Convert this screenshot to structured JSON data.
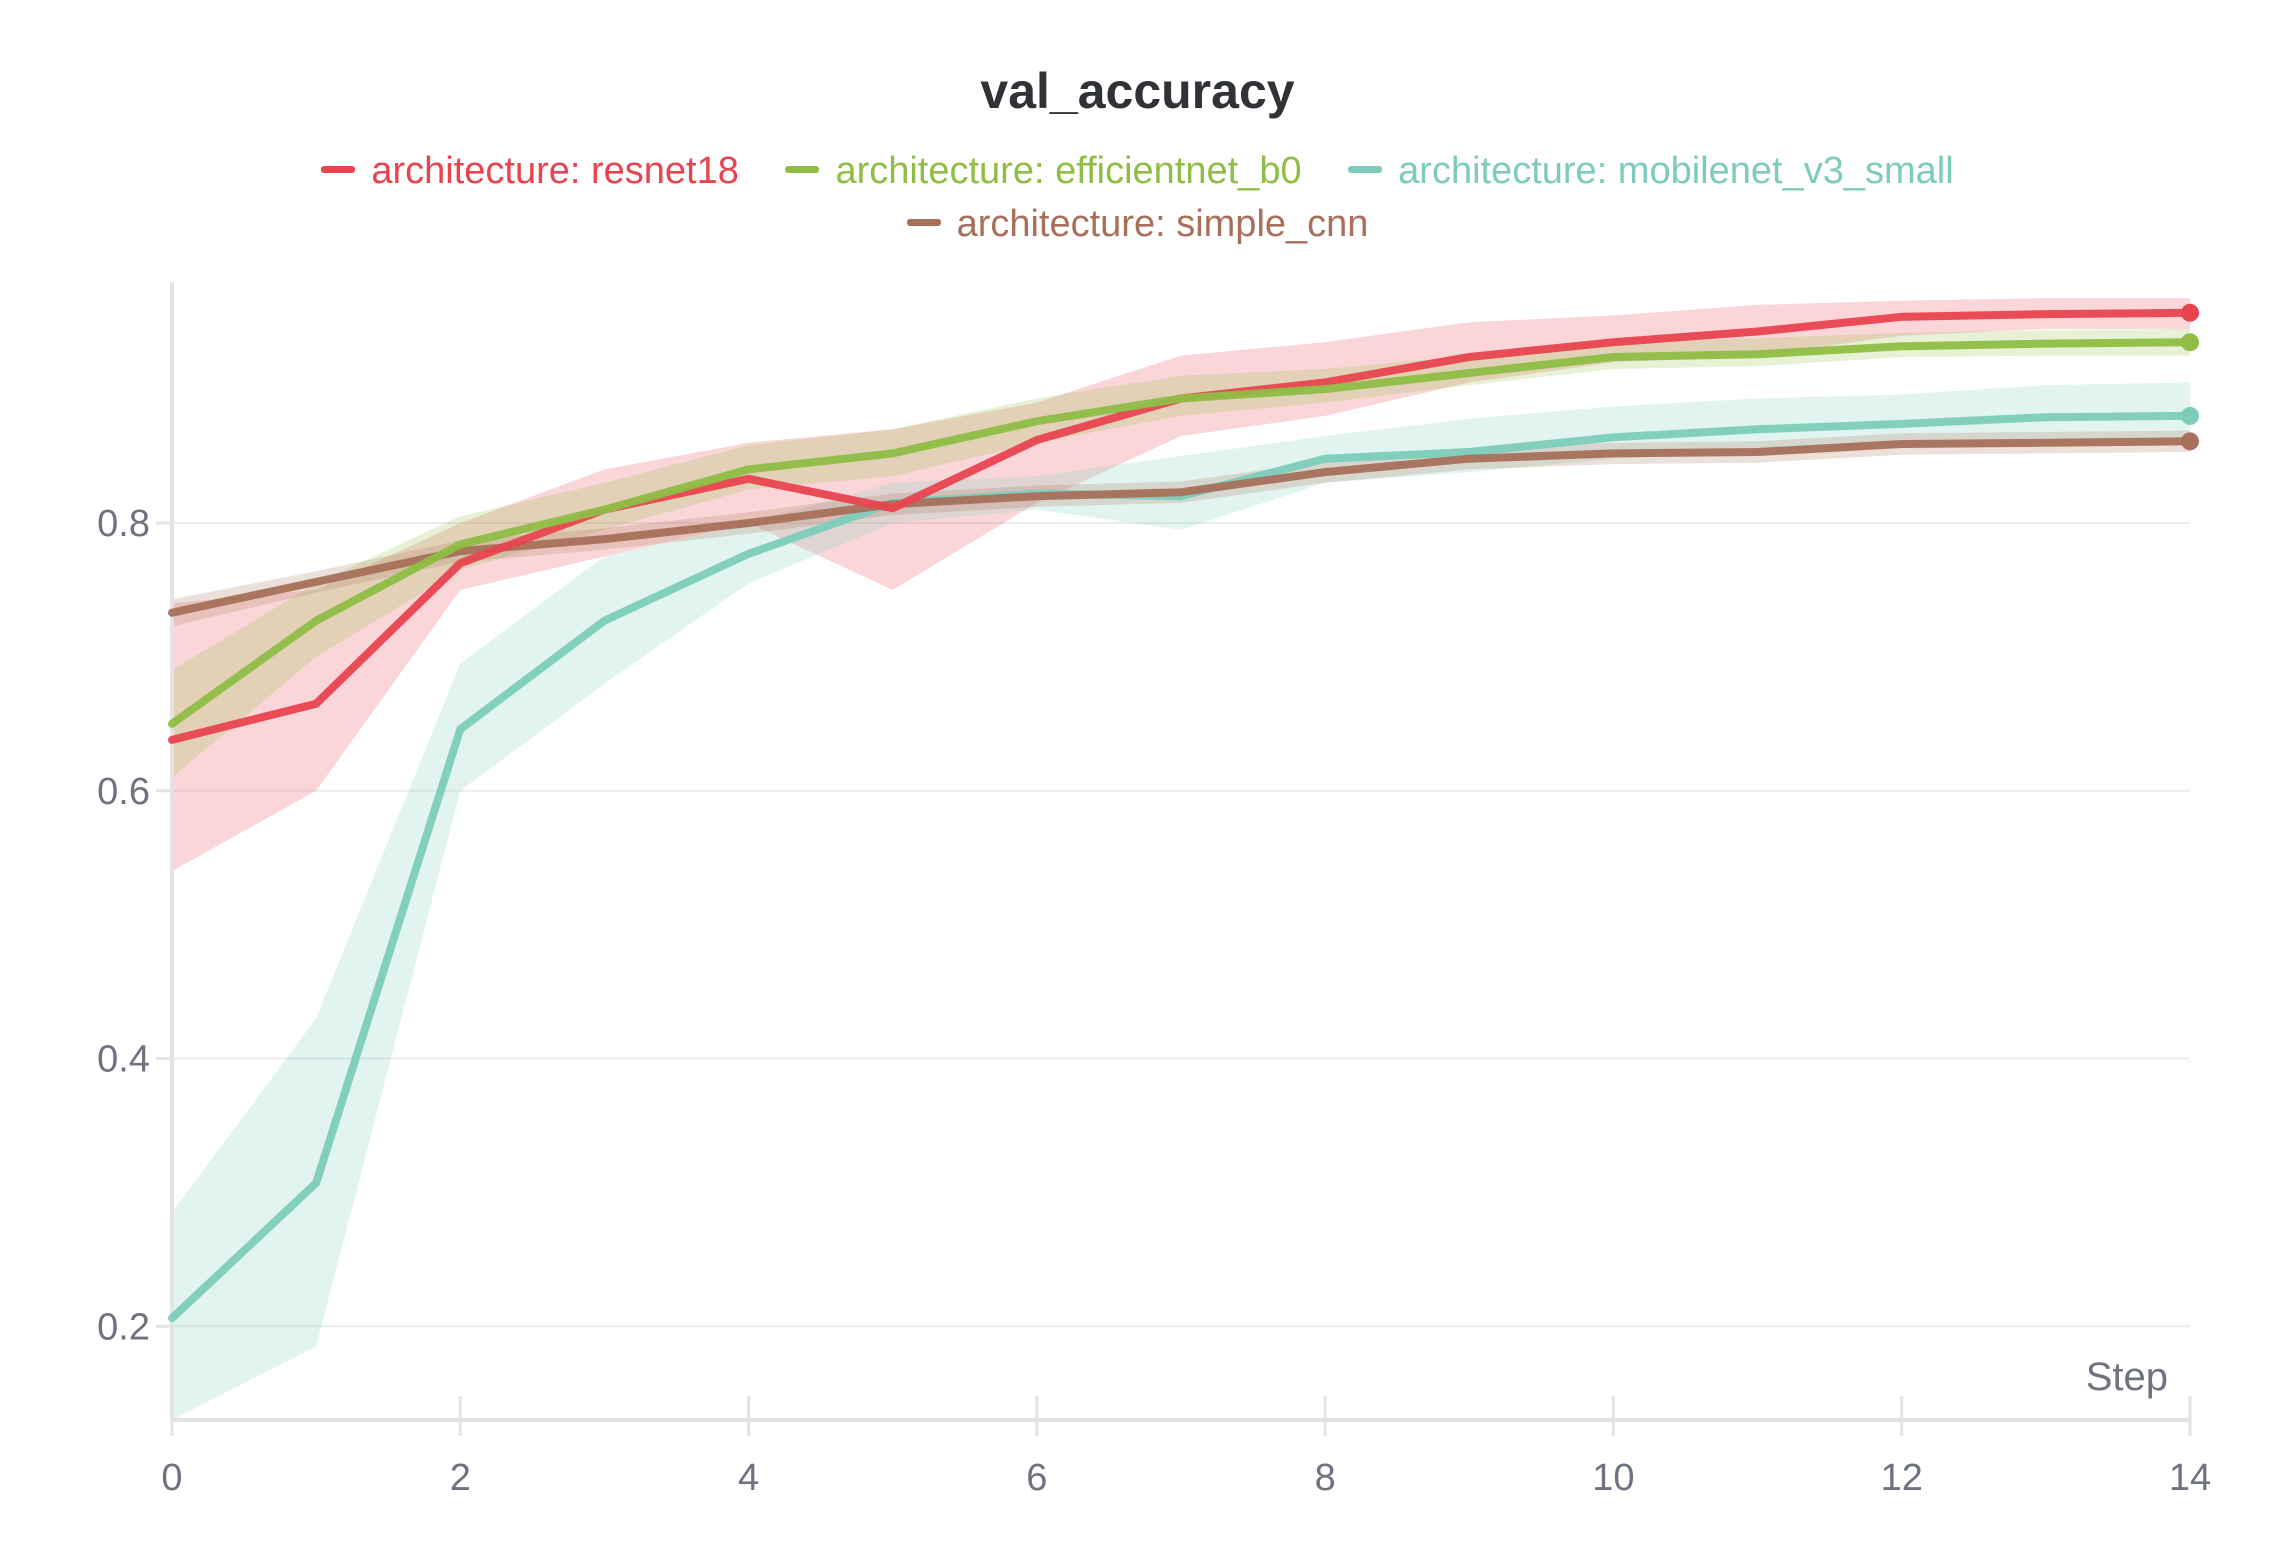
{
  "chart_data": {
    "type": "line",
    "title": "val_accuracy",
    "xlabel": "Step",
    "ylabel": "",
    "xlim": [
      0,
      14
    ],
    "ylim": [
      0.13,
      0.98
    ],
    "x_ticks": [
      0,
      2,
      4,
      6,
      8,
      10,
      12,
      14
    ],
    "y_ticks": [
      0.2,
      0.4,
      0.6,
      0.8
    ],
    "y_tick_labels": [
      "0.2",
      "0.4",
      "0.6",
      "0.8"
    ],
    "grid": true,
    "legend_position": "top-center",
    "x": [
      0,
      1,
      2,
      3,
      4,
      5,
      6,
      7,
      8,
      9,
      10,
      11,
      12,
      13,
      14
    ],
    "series": [
      {
        "name": "architecture: resnet18",
        "color": "#e8444f",
        "values": [
          0.638,
          0.665,
          0.77,
          0.81,
          0.833,
          0.811,
          0.862,
          0.893,
          0.905,
          0.924,
          0.935,
          0.943,
          0.954,
          0.956,
          0.957
        ],
        "band_low": [
          0.54,
          0.6,
          0.75,
          0.775,
          0.8,
          0.75,
          0.815,
          0.865,
          0.88,
          0.905,
          0.92,
          0.925,
          0.94,
          0.945,
          0.945
        ],
        "band_high": [
          0.74,
          0.75,
          0.8,
          0.84,
          0.86,
          0.87,
          0.89,
          0.925,
          0.935,
          0.95,
          0.955,
          0.963,
          0.966,
          0.968,
          0.968
        ]
      },
      {
        "name": "architecture: efficientnet_b0",
        "color": "#8fbd45",
        "values": [
          0.65,
          0.727,
          0.784,
          0.81,
          0.84,
          0.852,
          0.876,
          0.893,
          0.9,
          0.912,
          0.924,
          0.926,
          0.932,
          0.934,
          0.935
        ],
        "band_low": [
          0.61,
          0.7,
          0.765,
          0.795,
          0.825,
          0.835,
          0.86,
          0.88,
          0.89,
          0.903,
          0.915,
          0.917,
          0.924,
          0.925,
          0.925
        ],
        "band_high": [
          0.69,
          0.755,
          0.805,
          0.83,
          0.858,
          0.87,
          0.893,
          0.91,
          0.915,
          0.925,
          0.935,
          0.938,
          0.942,
          0.944,
          0.945
        ]
      },
      {
        "name": "architecture: mobilenet_v3_small",
        "color": "#7dccbb",
        "values": [
          0.206,
          0.307,
          0.646,
          0.727,
          0.777,
          0.815,
          0.822,
          0.82,
          0.848,
          0.853,
          0.864,
          0.87,
          0.874,
          0.879,
          0.88
        ],
        "band_low": [
          0.13,
          0.185,
          0.6,
          0.68,
          0.755,
          0.8,
          0.81,
          0.795,
          0.83,
          0.838,
          0.848,
          0.853,
          0.858,
          0.863,
          0.863
        ],
        "band_high": [
          0.285,
          0.43,
          0.695,
          0.775,
          0.8,
          0.83,
          0.835,
          0.85,
          0.865,
          0.878,
          0.887,
          0.893,
          0.896,
          0.903,
          0.905
        ]
      },
      {
        "name": "architecture: simple_cnn",
        "color": "#a8705a",
        "values": [
          0.733,
          0.756,
          0.779,
          0.788,
          0.8,
          0.814,
          0.82,
          0.823,
          0.838,
          0.848,
          0.852,
          0.853,
          0.859,
          0.86,
          0.861
        ],
        "band_low": [
          0.723,
          0.748,
          0.771,
          0.78,
          0.792,
          0.806,
          0.812,
          0.815,
          0.83,
          0.84,
          0.844,
          0.845,
          0.851,
          0.852,
          0.853
        ],
        "band_high": [
          0.743,
          0.764,
          0.787,
          0.796,
          0.808,
          0.822,
          0.828,
          0.831,
          0.846,
          0.856,
          0.86,
          0.861,
          0.867,
          0.868,
          0.869
        ]
      }
    ]
  },
  "colors": {
    "axis": "#e3e3e6",
    "grid": "#ececee",
    "tick_text": "#6f7380",
    "title_text": "#2f3237"
  }
}
